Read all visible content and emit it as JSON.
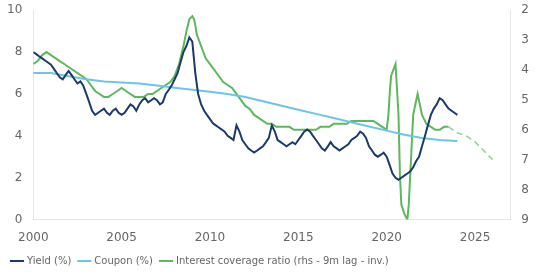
{
  "chart_data": {
    "type": "line",
    "xlim": [
      2000,
      2027
    ],
    "xticks": [
      2000,
      2005,
      2010,
      2015,
      2020,
      2025
    ],
    "ylim": [
      0,
      10
    ],
    "yticks": [
      0,
      2,
      4,
      6,
      8,
      10
    ],
    "y2lim": [
      9,
      2
    ],
    "y2ticks": [
      2,
      3,
      4,
      5,
      6,
      7,
      8,
      9
    ],
    "grid": false,
    "legend": "lower left",
    "series": [
      {
        "name": "Yield (%)",
        "color": "#1b3a6b",
        "axis": "y",
        "x": [
          2000.0,
          2000.17,
          2000.33,
          2000.5,
          2000.67,
          2000.83,
          2001.0,
          2001.17,
          2001.33,
          2001.5,
          2001.67,
          2001.83,
          2002.0,
          2002.17,
          2002.33,
          2002.5,
          2002.67,
          2002.83,
          2003.0,
          2003.17,
          2003.33,
          2003.5,
          2003.67,
          2003.83,
          2004.0,
          2004.17,
          2004.33,
          2004.5,
          2004.67,
          2004.83,
          2005.0,
          2005.17,
          2005.33,
          2005.5,
          2005.67,
          2005.83,
          2006.0,
          2006.17,
          2006.33,
          2006.5,
          2006.67,
          2006.83,
          2007.0,
          2007.17,
          2007.33,
          2007.5,
          2007.67,
          2007.83,
          2008.0,
          2008.17,
          2008.33,
          2008.5,
          2008.67,
          2008.83,
          2009.0,
          2009.17,
          2009.33,
          2009.5,
          2009.67,
          2009.83,
          2010.0,
          2010.17,
          2010.33,
          2010.5,
          2010.67,
          2010.83,
          2011.0,
          2011.17,
          2011.33,
          2011.5,
          2011.67,
          2011.83,
          2012.0,
          2012.17,
          2012.33,
          2012.5,
          2012.67,
          2012.83,
          2013.0,
          2013.17,
          2013.33,
          2013.5,
          2013.67,
          2013.83,
          2014.0,
          2014.17,
          2014.33,
          2014.5,
          2014.67,
          2014.83,
          2015.0,
          2015.17,
          2015.33,
          2015.5,
          2015.67,
          2015.83,
          2016.0,
          2016.17,
          2016.33,
          2016.5,
          2016.67,
          2016.83,
          2017.0,
          2017.17,
          2017.33,
          2017.5,
          2017.67,
          2017.83,
          2018.0,
          2018.17,
          2018.33,
          2018.5,
          2018.67,
          2018.83,
          2019.0,
          2019.17,
          2019.33,
          2019.5,
          2019.67,
          2019.83,
          2020.0,
          2020.17,
          2020.33,
          2020.5,
          2020.67,
          2020.83,
          2021.0,
          2021.17,
          2021.33,
          2021.5,
          2021.67,
          2021.83,
          2022.0,
          2022.17,
          2022.33,
          2022.5,
          2022.67,
          2022.83,
          2023.0,
          2023.17,
          2023.33,
          2023.5,
          2023.67,
          2023.83,
          2024.0
        ],
        "values": [
          8.0,
          7.9,
          7.8,
          7.7,
          7.6,
          7.5,
          7.4,
          7.2,
          7.0,
          6.8,
          6.7,
          6.9,
          7.1,
          6.9,
          6.7,
          6.5,
          6.6,
          6.4,
          6.0,
          5.6,
          5.2,
          5.0,
          5.1,
          5.2,
          5.3,
          5.1,
          5.0,
          5.2,
          5.3,
          5.1,
          5.0,
          5.1,
          5.3,
          5.5,
          5.4,
          5.2,
          5.5,
          5.7,
          5.8,
          5.6,
          5.7,
          5.8,
          5.7,
          5.5,
          5.6,
          6.0,
          6.2,
          6.4,
          6.7,
          7.0,
          7.5,
          8.0,
          8.3,
          8.7,
          8.5,
          7.0,
          6.0,
          5.5,
          5.2,
          5.0,
          4.8,
          4.6,
          4.5,
          4.4,
          4.3,
          4.2,
          4.0,
          3.9,
          3.8,
          4.5,
          4.2,
          3.8,
          3.6,
          3.4,
          3.3,
          3.2,
          3.3,
          3.4,
          3.5,
          3.7,
          3.9,
          4.5,
          4.2,
          3.8,
          3.7,
          3.6,
          3.5,
          3.6,
          3.7,
          3.6,
          3.8,
          4.0,
          4.2,
          4.3,
          4.2,
          4.0,
          3.8,
          3.6,
          3.4,
          3.3,
          3.5,
          3.7,
          3.5,
          3.4,
          3.3,
          3.4,
          3.5,
          3.6,
          3.8,
          3.9,
          4.0,
          4.2,
          4.1,
          3.9,
          3.5,
          3.3,
          3.1,
          3.0,
          3.1,
          3.2,
          3.0,
          2.6,
          2.2,
          2.0,
          1.9,
          2.0,
          2.1,
          2.2,
          2.3,
          2.5,
          2.8,
          3.0,
          3.5,
          4.0,
          4.5,
          5.0,
          5.3,
          5.5,
          5.8,
          5.7,
          5.5,
          5.3,
          5.2,
          5.1,
          5.0
        ]
      },
      {
        "name": "Coupon (%)",
        "color": "#6cc5e8",
        "axis": "y",
        "x": [
          2000.0,
          2001.0,
          2002.0,
          2003.0,
          2004.0,
          2005.0,
          2006.0,
          2007.0,
          2008.0,
          2009.0,
          2010.0,
          2011.0,
          2012.0,
          2013.0,
          2014.0,
          2015.0,
          2016.0,
          2017.0,
          2018.0,
          2019.0,
          2020.0,
          2021.0,
          2022.0,
          2023.0,
          2024.0
        ],
        "values": [
          7.0,
          7.0,
          6.85,
          6.7,
          6.6,
          6.55,
          6.5,
          6.4,
          6.3,
          6.2,
          6.1,
          6.0,
          5.85,
          5.65,
          5.45,
          5.25,
          5.05,
          4.85,
          4.65,
          4.45,
          4.25,
          4.05,
          3.9,
          3.8,
          3.75
        ]
      },
      {
        "name": "Interest coverage ratio (rhs - 9m lag - inv.)",
        "color": "#5cb85c",
        "axis": "y2",
        "x": [
          2000.0,
          2000.25,
          2000.5,
          2000.75,
          2001.0,
          2001.25,
          2001.5,
          2001.75,
          2002.0,
          2002.25,
          2002.5,
          2002.75,
          2003.0,
          2003.25,
          2003.5,
          2003.75,
          2004.0,
          2004.25,
          2004.5,
          2004.75,
          2005.0,
          2005.25,
          2005.5,
          2005.75,
          2006.0,
          2006.25,
          2006.5,
          2006.75,
          2007.0,
          2007.25,
          2007.5,
          2007.75,
          2008.0,
          2008.25,
          2008.5,
          2008.67,
          2008.75,
          2008.83,
          2009.0,
          2009.1,
          2009.17,
          2009.25,
          2009.5,
          2009.75,
          2010.0,
          2010.25,
          2010.5,
          2010.75,
          2011.0,
          2011.25,
          2011.5,
          2011.75,
          2012.0,
          2012.25,
          2012.5,
          2012.75,
          2013.0,
          2013.25,
          2013.5,
          2013.75,
          2014.0,
          2014.25,
          2014.5,
          2014.75,
          2015.0,
          2015.25,
          2015.5,
          2015.75,
          2016.0,
          2016.25,
          2016.5,
          2016.75,
          2017.0,
          2017.25,
          2017.5,
          2017.75,
          2018.0,
          2018.25,
          2018.5,
          2018.75,
          2019.0,
          2019.25,
          2019.5,
          2019.75,
          2020.0,
          2020.1,
          2020.17,
          2020.25,
          2020.5,
          2020.67,
          2020.75,
          2020.83,
          2021.0,
          2021.08,
          2021.17,
          2021.25,
          2021.5,
          2021.75,
          2022.0,
          2022.25,
          2022.5,
          2022.75,
          2023.0,
          2023.25,
          2023.5
        ],
        "values": [
          3.8,
          3.7,
          3.5,
          3.4,
          3.5,
          3.6,
          3.7,
          3.8,
          3.9,
          4.0,
          4.1,
          4.2,
          4.3,
          4.5,
          4.7,
          4.8,
          4.9,
          4.9,
          4.8,
          4.7,
          4.6,
          4.7,
          4.8,
          4.9,
          4.9,
          4.9,
          4.8,
          4.8,
          4.7,
          4.6,
          4.5,
          4.4,
          4.2,
          3.8,
          3.2,
          2.7,
          2.5,
          2.3,
          2.2,
          2.3,
          2.5,
          2.8,
          3.2,
          3.6,
          3.8,
          4.0,
          4.2,
          4.4,
          4.5,
          4.6,
          4.8,
          5.0,
          5.2,
          5.3,
          5.5,
          5.6,
          5.7,
          5.8,
          5.8,
          5.9,
          5.9,
          5.9,
          5.9,
          6.0,
          6.0,
          6.0,
          6.0,
          6.0,
          6.0,
          5.9,
          5.9,
          5.9,
          5.8,
          5.8,
          5.8,
          5.8,
          5.7,
          5.7,
          5.7,
          5.7,
          5.7,
          5.7,
          5.8,
          5.9,
          6.0,
          5.5,
          4.8,
          4.2,
          3.8,
          5.5,
          7.5,
          8.5,
          8.8,
          8.9,
          9.0,
          8.5,
          5.5,
          4.8,
          5.5,
          5.8,
          5.9,
          6.0,
          6.0,
          5.9,
          5.9
        ]
      },
      {
        "color": "#90d090",
        "axis": "y2",
        "line_style": "dashed",
        "x": [
          2023.5,
          2023.75,
          2024.0,
          2024.5,
          2025.0,
          2025.5,
          2026.0
        ],
        "values": [
          5.9,
          6.0,
          6.1,
          6.2,
          6.4,
          6.7,
          7.0
        ]
      }
    ]
  }
}
